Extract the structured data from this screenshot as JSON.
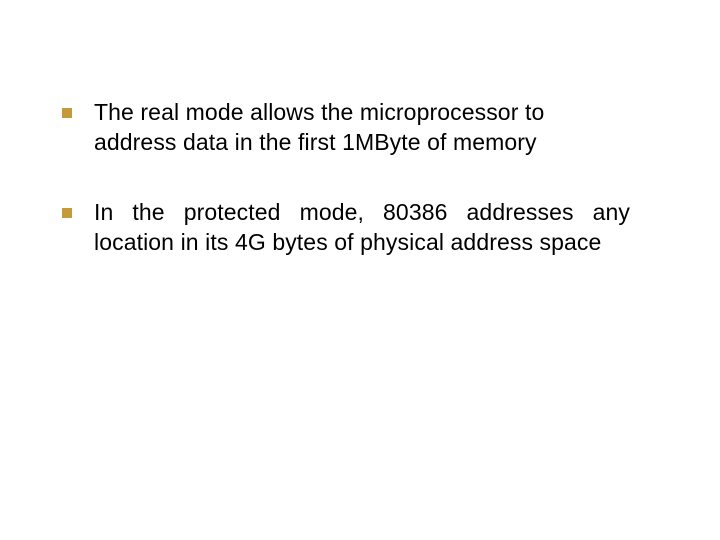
{
  "slide": {
    "bullets": [
      {
        "text": "The real mode allows the microprocessor to address data in the first 1MByte of memory"
      },
      {
        "text": "In the protected mode, 80386 addresses any location in its 4G bytes of physical address space"
      }
    ],
    "bullet_color": "#c49a3a",
    "text_color": "#000000",
    "background_color": "#ffffff",
    "font_size": 23
  }
}
